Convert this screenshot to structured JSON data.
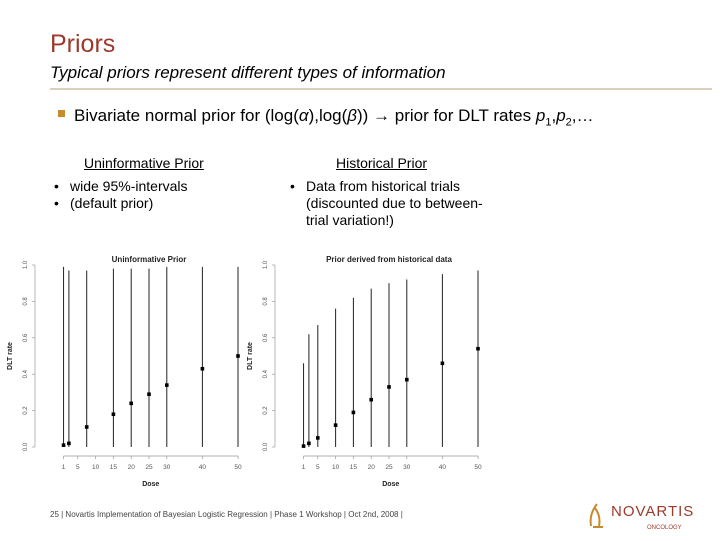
{
  "slide": {
    "title": "Priors",
    "subtitle": "Typical priors represent different types of information",
    "main_bullet": "Bivariate normal prior for (log(α),log(β)) → prior for DLT rates p1,p2,…",
    "main_bullet_parts": {
      "text1": "Bivariate normal prior for (log(",
      "alpha": "α",
      "text2": "),log(",
      "beta": "β",
      "text3": ")) → prior for DLT rates ",
      "p": "p",
      "sub1": "1",
      "comma": ",",
      "p2": "p",
      "sub2": "2",
      "ellipsis": ",…"
    },
    "left_column": {
      "heading": "Uninformative Prior",
      "items": [
        "wide 95%-intervals",
        "(default prior)"
      ]
    },
    "right_column": {
      "heading": "Historical Prior",
      "items": [
        "Data from historical trials (discounted due to between-trial variation!)"
      ]
    },
    "footer": "25 | Novartis Implementation of Bayesian Logistic Regression | Phase 1 Workshop | Oct 2nd, 2008 |",
    "logo_text": "NOVARTIS",
    "logo_subtext": "ONCOLOGY",
    "brand_color": "#9b3a2a",
    "accent_color": "#c98a2e"
  },
  "chart_data": [
    {
      "type": "scatter",
      "title": "Uninformative Prior",
      "xlabel": "Dose",
      "ylabel": "DLT rate",
      "xlim": [
        0,
        50
      ],
      "ylim": [
        0,
        1
      ],
      "x_ticks": [
        "1",
        "5",
        "10",
        "15",
        "20",
        "25",
        "30",
        "40",
        "50"
      ],
      "y_ticks": [
        "0.0",
        "0.2",
        "0.4",
        "0.6",
        "0.8",
        "1.0"
      ],
      "doses": [
        1,
        2.5,
        7.5,
        15,
        20,
        25,
        30,
        40,
        50
      ],
      "medians": [
        0.01,
        0.02,
        0.11,
        0.18,
        0.24,
        0.29,
        0.34,
        0.43,
        0.5
      ],
      "lower": [
        0.0,
        0.0,
        0.0,
        0.0,
        0.0,
        0.0,
        0.0,
        0.0,
        0.0
      ],
      "upper": [
        0.99,
        0.97,
        0.97,
        0.98,
        0.98,
        0.98,
        0.99,
        0.99,
        0.99
      ]
    },
    {
      "type": "scatter",
      "title": "Prior derived from historical data",
      "xlabel": "Dose",
      "ylabel": "DLT rate",
      "xlim": [
        0,
        50
      ],
      "ylim": [
        0,
        1
      ],
      "x_ticks": [
        "1",
        "5",
        "10",
        "15",
        "20",
        "25",
        "30",
        "40",
        "50"
      ],
      "y_ticks": [
        "0.0",
        "0.2",
        "0.4",
        "0.6",
        "0.8",
        "1.0"
      ],
      "doses": [
        1,
        2.5,
        5,
        10,
        15,
        20,
        25,
        30,
        40,
        50
      ],
      "medians": [
        0.005,
        0.02,
        0.05,
        0.12,
        0.19,
        0.26,
        0.33,
        0.37,
        0.46,
        0.54
      ],
      "lower": [
        0.0,
        0.0,
        0.0,
        0.0,
        0.0,
        0.0,
        0.0,
        0.0,
        0.0,
        0.0
      ],
      "upper": [
        0.46,
        0.62,
        0.67,
        0.76,
        0.82,
        0.87,
        0.9,
        0.92,
        0.95,
        0.97
      ]
    }
  ]
}
